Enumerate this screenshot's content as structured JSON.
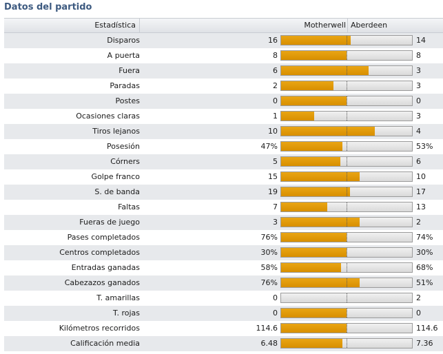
{
  "panel_title": "Datos del partido",
  "header": {
    "stat": "Estadística",
    "home": "Motherwell",
    "away": "Aberdeen"
  },
  "colors": {
    "home_bar": "#e09a00",
    "track": "#dcdcdc",
    "title": "#3d5a80"
  },
  "stats": [
    {
      "label": "Disparos",
      "home": "16",
      "away": "14",
      "home_share": 0.533
    },
    {
      "label": "A puerta",
      "home": "8",
      "away": "8",
      "home_share": 0.5
    },
    {
      "label": "Fuera",
      "home": "6",
      "away": "3",
      "home_share": 0.667
    },
    {
      "label": "Paradas",
      "home": "2",
      "away": "3",
      "home_share": 0.4
    },
    {
      "label": "Postes",
      "home": "0",
      "away": "0",
      "home_share": 0.5
    },
    {
      "label": "Ocasiones claras",
      "home": "1",
      "away": "3",
      "home_share": 0.25
    },
    {
      "label": "Tiros lejanos",
      "home": "10",
      "away": "4",
      "home_share": 0.714
    },
    {
      "label": "Posesión",
      "home": "47%",
      "away": "53%",
      "home_share": 0.47
    },
    {
      "label": "Córners",
      "home": "5",
      "away": "6",
      "home_share": 0.455
    },
    {
      "label": "Golpe franco",
      "home": "15",
      "away": "10",
      "home_share": 0.6
    },
    {
      "label": "S. de banda",
      "home": "19",
      "away": "17",
      "home_share": 0.528
    },
    {
      "label": "Faltas",
      "home": "7",
      "away": "13",
      "home_share": 0.35
    },
    {
      "label": "Fueras de juego",
      "home": "3",
      "away": "2",
      "home_share": 0.6
    },
    {
      "label": "Pases completados",
      "home": "76%",
      "away": "74%",
      "home_share": 0.5
    },
    {
      "label": "Centros completados",
      "home": "30%",
      "away": "30%",
      "home_share": 0.5
    },
    {
      "label": "Entradas ganadas",
      "home": "58%",
      "away": "68%",
      "home_share": 0.46
    },
    {
      "label": "Cabezazos ganados",
      "home": "76%",
      "away": "51%",
      "home_share": 0.6
    },
    {
      "label": "T. amarillas",
      "home": "0",
      "away": "2",
      "home_share": 0.0
    },
    {
      "label": "T. rojas",
      "home": "0",
      "away": "0",
      "home_share": 0.5
    },
    {
      "label": "Kilómetros recorridos",
      "home": "114.6",
      "away": "114.6",
      "home_share": 0.5
    },
    {
      "label": "Calificación media",
      "home": "6.48",
      "away": "7.36",
      "home_share": 0.47
    }
  ]
}
